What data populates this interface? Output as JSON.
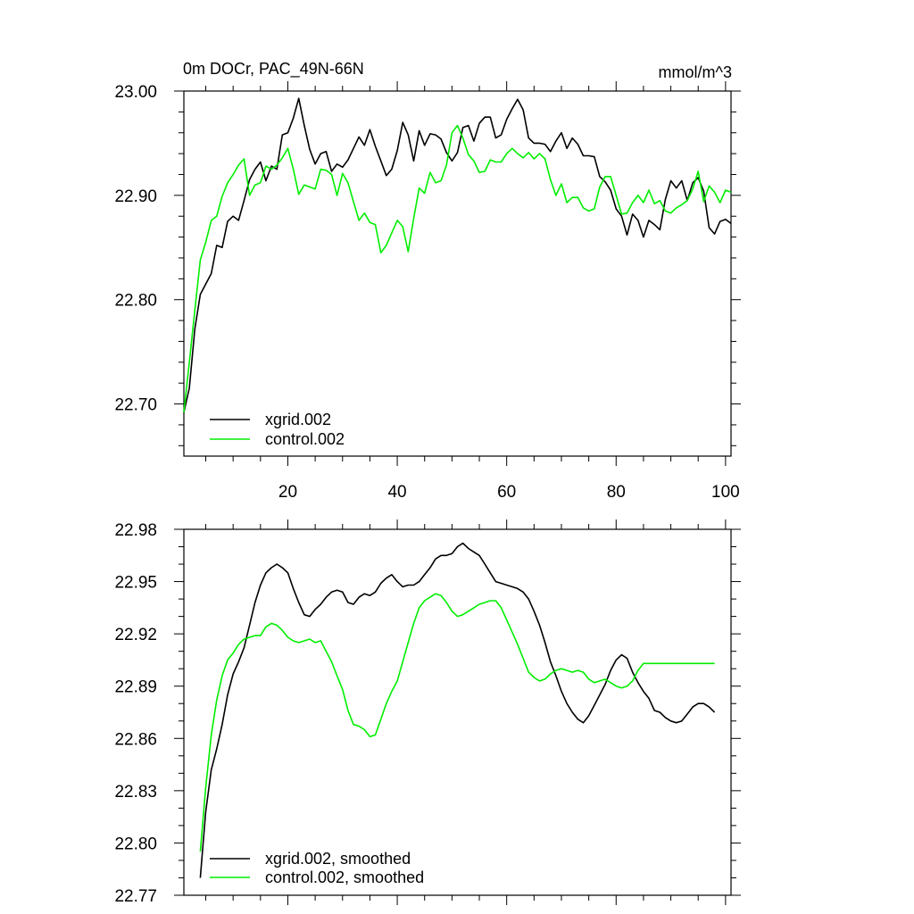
{
  "chart_data": [
    {
      "type": "line",
      "title": "0m DOCr, PAC_49N-66N",
      "units": "mmol/m^3",
      "xlim": [
        1,
        101
      ],
      "ylim": [
        22.65,
        23.0
      ],
      "xticks": [
        20,
        40,
        60,
        80,
        100
      ],
      "xtick_labels": [
        "20",
        "40",
        "60",
        "80",
        "100"
      ],
      "yticks": [
        22.7,
        22.8,
        22.9,
        23.0
      ],
      "ytick_labels": [
        "22.70",
        "22.80",
        "22.90",
        "23.00"
      ],
      "legend_position": "bottom-left",
      "x": [
        1,
        2,
        3,
        4,
        5,
        6,
        7,
        8,
        9,
        10,
        11,
        12,
        13,
        14,
        15,
        16,
        17,
        18,
        19,
        20,
        21,
        22,
        23,
        24,
        25,
        26,
        27,
        28,
        29,
        30,
        31,
        32,
        33,
        34,
        35,
        36,
        37,
        38,
        39,
        40,
        41,
        42,
        43,
        44,
        45,
        46,
        47,
        48,
        49,
        50,
        51,
        52,
        53,
        54,
        55,
        56,
        57,
        58,
        59,
        60,
        61,
        62,
        63,
        64,
        65,
        66,
        67,
        68,
        69,
        70,
        71,
        72,
        73,
        74,
        75,
        76,
        77,
        78,
        79,
        80,
        81,
        82,
        83,
        84,
        85,
        86,
        87,
        88,
        89,
        90,
        91,
        92,
        93,
        94,
        95,
        96,
        97,
        98,
        99,
        100,
        101
      ],
      "series": [
        {
          "name": "xgrid.002",
          "color": "#000000",
          "values": [
            22.692,
            22.715,
            22.772,
            22.805,
            22.815,
            22.825,
            22.852,
            22.85,
            22.875,
            22.88,
            22.876,
            22.895,
            22.915,
            22.925,
            22.932,
            22.914,
            22.928,
            22.925,
            22.958,
            22.96,
            22.974,
            22.993,
            22.967,
            22.944,
            22.93,
            22.94,
            22.942,
            22.923,
            22.93,
            22.927,
            22.934,
            22.945,
            22.956,
            22.948,
            22.963,
            22.947,
            22.933,
            22.919,
            22.925,
            22.943,
            22.97,
            22.958,
            22.933,
            22.962,
            22.948,
            22.959,
            22.958,
            22.954,
            22.941,
            22.933,
            22.941,
            22.965,
            22.967,
            22.952,
            22.969,
            22.975,
            22.975,
            22.955,
            22.958,
            22.973,
            22.983,
            22.992,
            22.982,
            22.955,
            22.95,
            22.95,
            22.949,
            22.942,
            22.952,
            22.96,
            22.945,
            22.955,
            22.949,
            22.938,
            22.938,
            22.937,
            22.918,
            22.913,
            22.905,
            22.887,
            22.88,
            22.862,
            22.882,
            22.876,
            22.86,
            22.876,
            22.872,
            22.867,
            22.896,
            22.914,
            22.907,
            22.914,
            22.895,
            22.912,
            22.917,
            22.904,
            22.869,
            22.863,
            22.875,
            22.877,
            22.873
          ]
        },
        {
          "name": "control.002",
          "color": "#00ee00",
          "values": [
            22.692,
            22.74,
            22.79,
            22.838,
            22.855,
            22.876,
            22.88,
            22.899,
            22.912,
            22.92,
            22.929,
            22.935,
            22.9,
            22.91,
            22.912,
            22.928,
            22.925,
            22.929,
            22.936,
            22.945,
            22.925,
            22.901,
            22.91,
            22.908,
            22.906,
            22.925,
            22.924,
            22.92,
            22.9,
            22.921,
            22.912,
            22.894,
            22.876,
            22.883,
            22.874,
            22.872,
            22.845,
            22.852,
            22.864,
            22.876,
            22.87,
            22.846,
            22.878,
            22.907,
            22.902,
            22.922,
            22.912,
            22.914,
            22.929,
            22.96,
            22.967,
            22.955,
            22.939,
            22.933,
            22.922,
            22.923,
            22.934,
            22.932,
            22.932,
            22.94,
            22.945,
            22.94,
            22.936,
            22.941,
            22.935,
            22.94,
            22.935,
            22.915,
            22.9,
            22.911,
            22.893,
            22.898,
            22.898,
            22.888,
            22.885,
            22.887,
            22.908,
            22.918,
            22.918,
            22.9,
            22.882,
            22.883,
            22.893,
            22.9,
            22.893,
            22.905,
            22.892,
            22.895,
            22.885,
            22.883,
            22.888,
            22.891,
            22.895,
            22.906,
            22.923,
            22.894,
            22.909,
            22.903,
            22.893,
            22.905,
            22.903
          ]
        }
      ]
    },
    {
      "type": "line",
      "title": "",
      "xlim": [
        1,
        101
      ],
      "ylim": [
        22.77,
        22.98
      ],
      "xticks": [
        20,
        40,
        60,
        80,
        100
      ],
      "yticks": [
        22.77,
        22.8,
        22.83,
        22.86,
        22.89,
        22.92,
        22.95,
        22.98
      ],
      "ytick_labels": [
        "22.77",
        "22.80",
        "22.83",
        "22.86",
        "22.89",
        "22.92",
        "22.95",
        "22.98"
      ],
      "legend_position": "bottom-left",
      "x": [
        4,
        5,
        6,
        7,
        8,
        9,
        10,
        11,
        12,
        13,
        14,
        15,
        16,
        17,
        18,
        19,
        20,
        21,
        22,
        23,
        24,
        25,
        26,
        27,
        28,
        29,
        30,
        31,
        32,
        33,
        34,
        35,
        36,
        37,
        38,
        39,
        40,
        41,
        42,
        43,
        44,
        45,
        46,
        47,
        48,
        49,
        50,
        51,
        52,
        53,
        54,
        55,
        56,
        57,
        58,
        59,
        60,
        61,
        62,
        63,
        64,
        65,
        66,
        67,
        68,
        69,
        70,
        71,
        72,
        73,
        74,
        75,
        76,
        77,
        78,
        79,
        80,
        81,
        82,
        83,
        84,
        85,
        86,
        87,
        88,
        89,
        90,
        91,
        92,
        93,
        94,
        95,
        96,
        97,
        98
      ],
      "series": [
        {
          "name": "xgrid.002, smoothed",
          "color": "#000000",
          "values": [
            22.78,
            22.818,
            22.842,
            22.854,
            22.868,
            22.885,
            22.897,
            22.904,
            22.912,
            22.925,
            22.938,
            22.948,
            22.955,
            22.958,
            22.96,
            22.958,
            22.955,
            22.946,
            22.938,
            22.931,
            22.93,
            22.934,
            22.937,
            22.941,
            22.944,
            22.945,
            22.944,
            22.938,
            22.937,
            22.941,
            22.943,
            22.942,
            22.944,
            22.949,
            22.952,
            22.954,
            22.95,
            22.947,
            22.948,
            22.948,
            22.95,
            22.954,
            22.958,
            22.963,
            22.965,
            22.965,
            22.966,
            22.97,
            22.972,
            22.969,
            22.967,
            22.965,
            22.96,
            22.955,
            22.95,
            22.949,
            22.948,
            22.947,
            22.946,
            22.944,
            22.94,
            22.933,
            22.925,
            22.915,
            22.904,
            22.896,
            22.887,
            22.88,
            22.875,
            22.871,
            22.869,
            22.873,
            22.879,
            22.885,
            22.891,
            22.899,
            22.905,
            22.908,
            22.906,
            22.898,
            22.892,
            22.887,
            22.883,
            22.876,
            22.875,
            22.872,
            22.87,
            22.869,
            22.87,
            22.874,
            22.878,
            22.88,
            22.88,
            22.878,
            22.875
          ]
        },
        {
          "name": "control.002, smoothed",
          "color": "#00ee00",
          "values": [
            22.795,
            22.832,
            22.862,
            22.882,
            22.896,
            22.905,
            22.909,
            22.914,
            22.917,
            22.918,
            22.919,
            22.919,
            22.924,
            22.926,
            22.925,
            22.922,
            22.918,
            22.916,
            22.915,
            22.916,
            22.917,
            22.915,
            22.916,
            22.91,
            22.904,
            22.896,
            22.888,
            22.876,
            22.868,
            22.867,
            22.865,
            22.861,
            22.862,
            22.871,
            22.88,
            22.887,
            22.893,
            22.904,
            22.915,
            22.926,
            22.935,
            22.939,
            22.941,
            22.943,
            22.942,
            22.938,
            22.933,
            22.93,
            22.931,
            22.933,
            22.935,
            22.937,
            22.938,
            22.939,
            22.939,
            22.935,
            22.928,
            22.921,
            22.914,
            22.906,
            22.898,
            22.895,
            22.893,
            22.894,
            22.897,
            22.899,
            22.9,
            22.899,
            22.898,
            22.899,
            22.898,
            22.894,
            22.892,
            22.893,
            22.894,
            22.892,
            22.89,
            22.889,
            22.89,
            22.893,
            22.899,
            22.903,
            22.903,
            22.903,
            22.903,
            22.903,
            22.903,
            22.903,
            22.903,
            22.903,
            22.903,
            22.903,
            22.903,
            22.903,
            22.903
          ]
        }
      ]
    }
  ]
}
